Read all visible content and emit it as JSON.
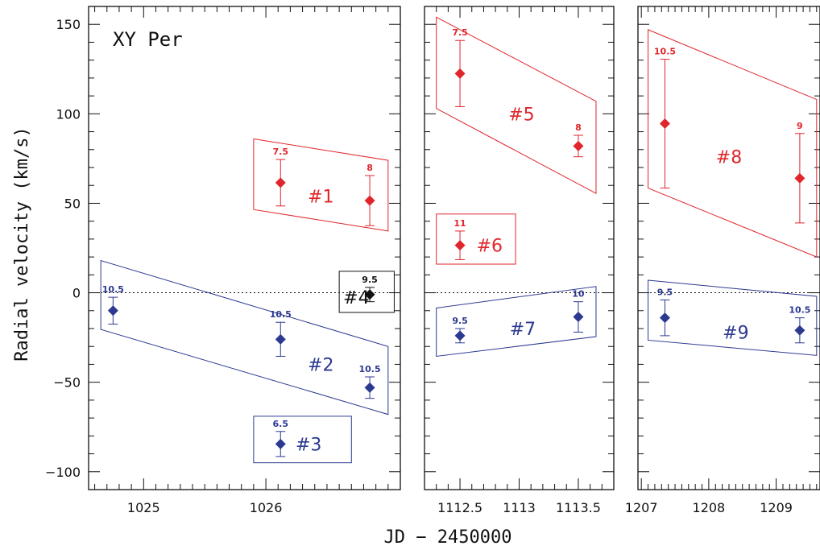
{
  "chart_data": {
    "type": "scatter",
    "title": "XY Per",
    "ylabel": "Radial velocity (km/s)",
    "xlabel": "JD − 2450000",
    "ylim": [
      -110,
      160
    ],
    "y_ticks": [
      150,
      100,
      50,
      0,
      -50,
      -100
    ],
    "y_tick_labels": [
      "150",
      "100",
      "50",
      "0",
      "−50",
      "−100"
    ],
    "zero_line": "dotted",
    "colors": {
      "red": "#e0262b",
      "blue": "#2b3990",
      "black": "#111111"
    },
    "panels": [
      {
        "xlim": [
          1024.55,
          1027.1
        ],
        "x_ticks": [
          1025,
          1026
        ],
        "x_tick_labels": [
          "1025",
          "1026"
        ],
        "points": [
          {
            "x": 1026.12,
            "y": 61.5,
            "err": 13,
            "label": "7.5",
            "color": "red"
          },
          {
            "x": 1026.85,
            "y": 51.5,
            "err": 14,
            "label": "8",
            "color": "red"
          },
          {
            "x": 1024.75,
            "y": -10,
            "err": 7.5,
            "label": "10.5",
            "color": "blue"
          },
          {
            "x": 1026.12,
            "y": -26,
            "err": 9.5,
            "label": "10.5",
            "color": "blue"
          },
          {
            "x": 1026.85,
            "y": -53,
            "err": 6,
            "label": "10.5",
            "color": "blue"
          },
          {
            "x": 1026.12,
            "y": -84.5,
            "err": 7,
            "label": "6.5",
            "color": "blue"
          },
          {
            "x": 1026.85,
            "y": -1,
            "err": 4,
            "label": "9.5",
            "color": "black"
          }
        ],
        "groups": [
          {
            "label": "#1",
            "color": "red",
            "shape": "polygon",
            "corners": [
              [
                1025.9,
                86
              ],
              [
                1027.0,
                74
              ],
              [
                1027.0,
                34.5
              ],
              [
                1025.9,
                46.5
              ]
            ],
            "label_at": [
              1026.45,
              54
            ]
          },
          {
            "label": "#2",
            "color": "blue",
            "shape": "polygon",
            "corners": [
              [
                1024.65,
                18
              ],
              [
                1027.0,
                -30
              ],
              [
                1027.0,
                -68
              ],
              [
                1024.65,
                -20.5
              ]
            ],
            "label_at": [
              1026.45,
              -40
            ]
          },
          {
            "label": "#3",
            "color": "blue",
            "shape": "box",
            "corners": [
              [
                1025.9,
                -69
              ],
              [
                1026.7,
                -95
              ]
            ],
            "label_at": [
              1026.35,
              -84.5
            ]
          },
          {
            "label": "#4",
            "color": "black",
            "shape": "box",
            "corners": [
              [
                1026.6,
                12
              ],
              [
                1027.05,
                -11
              ]
            ],
            "label_at": [
              1026.74,
              -2.5
            ]
          }
        ]
      },
      {
        "xlim": [
          1112.2,
          1113.8
        ],
        "x_ticks": [
          1112.5,
          1113,
          1113.5
        ],
        "x_tick_labels": [
          "1112.5",
          "1113",
          "1113.5"
        ],
        "points": [
          {
            "x": 1112.5,
            "y": 122.5,
            "err": 18.5,
            "label": "7.5",
            "color": "red"
          },
          {
            "x": 1113.5,
            "y": 82,
            "err": 6,
            "label": "8",
            "color": "red"
          },
          {
            "x": 1112.5,
            "y": 26.5,
            "err": 8,
            "label": "11",
            "color": "red"
          },
          {
            "x": 1112.5,
            "y": -24,
            "err": 4,
            "label": "9.5",
            "color": "blue"
          },
          {
            "x": 1113.5,
            "y": -13.5,
            "err": 8.5,
            "label": "10",
            "color": "blue"
          }
        ],
        "groups": [
          {
            "label": "#5",
            "color": "red",
            "shape": "polygon",
            "corners": [
              [
                1112.3,
                154
              ],
              [
                1113.65,
                107
              ],
              [
                1113.65,
                55.5
              ],
              [
                1112.3,
                103
              ]
            ],
            "label_at": [
              1113.02,
              100
            ]
          },
          {
            "label": "#6",
            "color": "red",
            "shape": "box",
            "corners": [
              [
                1112.3,
                44
              ],
              [
                1112.97,
                16
              ]
            ],
            "label_at": [
              1112.75,
              26.5
            ]
          },
          {
            "label": "#7",
            "color": "blue",
            "shape": "polygon",
            "corners": [
              [
                1112.3,
                -8.5
              ],
              [
                1113.65,
                3.5
              ],
              [
                1113.65,
                -24.5
              ],
              [
                1112.3,
                -35.5
              ]
            ],
            "label_at": [
              1113.03,
              -20
            ]
          },
          {
            "label": "#9",
            "color": "blue",
            "shape": "polygon",
            "corners": [
              [
                1207.1,
                7
              ],
              [
                1209.6,
                -2
              ],
              [
                1209.6,
                -35
              ],
              [
                1207.1,
                -26.5
              ]
            ],
            "label_at": [
              1208.4,
              -22
            ],
            "panel": 2
          }
        ]
      },
      {
        "xlim": [
          1206.95,
          1209.65
        ],
        "x_ticks": [
          1207,
          1208,
          1209
        ],
        "x_tick_labels": [
          "1207",
          "1208",
          "1209"
        ],
        "points": [
          {
            "x": 1207.35,
            "y": 94.5,
            "err": 36,
            "label": "10.5",
            "color": "red"
          },
          {
            "x": 1209.35,
            "y": 64,
            "err": 25,
            "label": "9",
            "color": "red"
          },
          {
            "x": 1207.35,
            "y": -14,
            "err": 10,
            "label": "9.5",
            "color": "blue"
          },
          {
            "x": 1209.35,
            "y": -21,
            "err": 7,
            "label": "10.5",
            "color": "blue"
          }
        ],
        "groups": [
          {
            "label": "#8",
            "color": "red",
            "shape": "polygon",
            "corners": [
              [
                1207.1,
                147
              ],
              [
                1209.6,
                108
              ],
              [
                1209.6,
                20
              ],
              [
                1207.1,
                58.5
              ]
            ],
            "label_at": [
              1208.3,
              76
            ]
          }
        ]
      }
    ]
  }
}
